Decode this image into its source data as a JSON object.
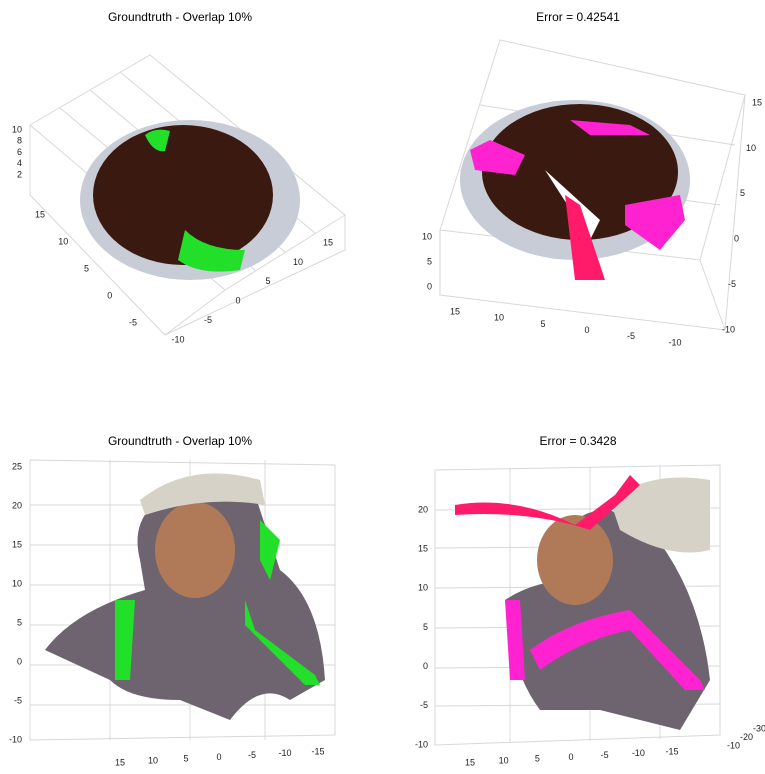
{
  "panels": [
    {
      "title": "Groundtruth -  Overlap 10%",
      "axes": [
        [
          10,
          8,
          6,
          4,
          2
        ],
        [
          15,
          10,
          5,
          0,
          -5
        ],
        [
          -10,
          -5,
          0,
          5,
          10,
          15
        ]
      ]
    },
    {
      "title": "Error = 0.42541",
      "axes": [
        [
          10,
          5,
          0
        ],
        [
          15,
          10,
          5,
          0,
          -5,
          -10
        ],
        [
          15,
          10,
          5,
          0,
          -5,
          -10
        ]
      ]
    },
    {
      "title": "Groundtruth -  Overlap 10%",
      "axes": [
        [
          25,
          20,
          15,
          10,
          5,
          0,
          -5,
          -10
        ],
        [
          15,
          10,
          5,
          0,
          -5,
          -10,
          -15
        ]
      ]
    },
    {
      "title": "Error = 0.3428",
      "axes": [
        [
          20,
          15,
          10,
          5,
          0,
          -5,
          -10
        ],
        [
          15,
          10,
          5,
          0,
          -5,
          -10,
          -15
        ],
        [
          -10,
          -20,
          -30
        ]
      ]
    }
  ]
}
